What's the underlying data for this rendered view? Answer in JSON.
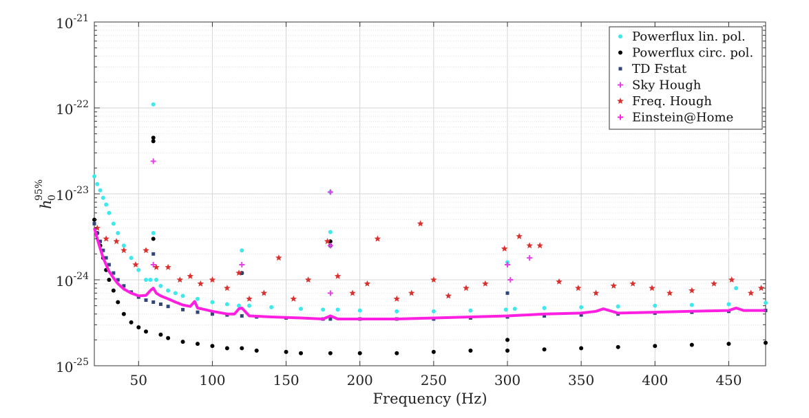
{
  "chart_data": {
    "type": "scatter",
    "xlabel": "Frequency (Hz)",
    "ylabel": "h0 95%",
    "ylabel_base": "h",
    "ylabel_sub": "0",
    "ylabel_sup": "95%",
    "xlim": [
      20,
      475
    ],
    "ylim": [
      1e-25,
      1e-21
    ],
    "yscale": "log",
    "grid": true,
    "legend_position": "top-right",
    "x_ticks": [
      50,
      100,
      150,
      200,
      250,
      300,
      350,
      400,
      450
    ],
    "x_tick_labels": [
      "50",
      "100",
      "150",
      "200",
      "250",
      "300",
      "350",
      "400",
      "450"
    ],
    "y_ticks": [
      1e-25,
      1e-24,
      1e-23,
      1e-22,
      1e-21
    ],
    "y_tick_bases": [
      "10",
      "10",
      "10",
      "10",
      "10"
    ],
    "y_tick_exponents": [
      "-25",
      "-24",
      "-23",
      "-22",
      "-21"
    ],
    "series": [
      {
        "name": "Powerflux lin. pol.",
        "color": "#3ee8ec",
        "marker": "dot",
        "x": [
          20,
          22,
          24,
          26,
          28,
          30,
          33,
          36,
          40,
          45,
          50,
          55,
          58,
          60,
          60,
          62,
          65,
          70,
          75,
          80,
          90,
          100,
          110,
          118,
          120,
          125,
          140,
          160,
          175,
          180,
          180,
          185,
          200,
          225,
          250,
          275,
          299,
          300,
          305,
          325,
          350,
          375,
          400,
          425,
          450,
          455,
          475
        ],
        "y": [
          1.6e-23,
          1.3e-23,
          1.1e-23,
          9e-24,
          7.5e-24,
          6e-24,
          4.5e-24,
          3.5e-24,
          2.5e-24,
          1.8e-24,
          1.3e-24,
          1e-24,
          1e-24,
          1.1e-22,
          3.5e-24,
          1e-24,
          8.5e-25,
          7.5e-25,
          7e-25,
          6.5e-25,
          6e-25,
          5.5e-25,
          5.2e-25,
          5e-25,
          2.2e-24,
          5e-25,
          4.8e-25,
          4.6e-25,
          4.5e-25,
          1.05e-23,
          3.6e-24,
          4.5e-25,
          4.4e-25,
          4.3e-25,
          4.3e-25,
          4.4e-25,
          4.5e-25,
          1.6e-24,
          4.6e-25,
          4.7e-25,
          4.8e-25,
          4.9e-25,
          5e-25,
          5.1e-25,
          5.2e-25,
          8e-25,
          5.4e-25
        ]
      },
      {
        "name": "Powerflux circ. pol.",
        "color": "#000000",
        "marker": "dot",
        "x": [
          20,
          22,
          24,
          26,
          28,
          30,
          33,
          36,
          40,
          45,
          50,
          55,
          60,
          60,
          60,
          65,
          70,
          80,
          90,
          100,
          110,
          120,
          120,
          130,
          150,
          160,
          180,
          180,
          200,
          225,
          250,
          275,
          300,
          300,
          325,
          350,
          375,
          400,
          425,
          450,
          475
        ],
        "y": [
          5e-24,
          3.5e-24,
          2.5e-24,
          1.8e-24,
          1.3e-24,
          1e-24,
          7.5e-25,
          5.5e-25,
          4e-25,
          3.2e-25,
          2.8e-25,
          2.5e-25,
          4.5e-23,
          4.1e-23,
          3e-24,
          2.3e-25,
          2.1e-25,
          1.9e-25,
          1.8e-25,
          1.7e-25,
          1.6e-25,
          1.6e-25,
          1.2e-24,
          1.5e-25,
          1.45e-25,
          1.4e-25,
          1.4e-25,
          2.8e-24,
          1.4e-25,
          1.4e-25,
          1.45e-25,
          1.5e-25,
          1.5e-25,
          2e-25,
          1.55e-25,
          1.6e-25,
          1.65e-25,
          1.7e-25,
          1.75e-25,
          1.8e-25,
          1.85e-25
        ]
      },
      {
        "name": "TD Fstat",
        "color": "#30467a",
        "marker": "square",
        "x": [
          20,
          22,
          24,
          26,
          28,
          30,
          33,
          36,
          40,
          45,
          50,
          55,
          60,
          60,
          65,
          70,
          80,
          90,
          100,
          110,
          120,
          120,
          130,
          150,
          175,
          180,
          180,
          200,
          225,
          250,
          275,
          300,
          300,
          325,
          350,
          375,
          400,
          425,
          450,
          475
        ],
        "y": [
          4.5e-24,
          3.5e-24,
          2.8e-24,
          2.2e-24,
          1.8e-24,
          1.5e-24,
          1.2e-24,
          1e-24,
          8.5e-25,
          7.2e-25,
          6.3e-25,
          5.8e-25,
          2e-24,
          5.5e-25,
          5.2e-25,
          4.9e-25,
          4.5e-25,
          4.2e-25,
          4e-25,
          3.9e-25,
          1.2e-24,
          3.8e-25,
          3.7e-25,
          3.6e-25,
          3.5e-25,
          2.5e-24,
          3.5e-25,
          3.5e-25,
          3.5e-25,
          3.5e-25,
          3.6e-25,
          3.7e-25,
          7e-25,
          3.8e-25,
          3.9e-25,
          4e-25,
          4.1e-25,
          4.2e-25,
          4.3e-25,
          4.4e-25
        ]
      },
      {
        "name": "Sky Hough",
        "color": "#e83ee8",
        "marker": "plus",
        "x": [
          60,
          60,
          120,
          180,
          180,
          180,
          300,
          302,
          315
        ],
        "y": [
          2.4e-23,
          1.5e-24,
          1.5e-24,
          1.05e-23,
          2.5e-24,
          7e-25,
          1.5e-24,
          1e-24,
          1.8e-24
        ]
      },
      {
        "name": "Freq. Hough",
        "color": "#d8312e",
        "marker": "star",
        "x": [
          22,
          28,
          35,
          40,
          48,
          55,
          62,
          70,
          78,
          85,
          92,
          100,
          110,
          118,
          125,
          135,
          145,
          155,
          165,
          178,
          185,
          195,
          205,
          212,
          225,
          235,
          241,
          250,
          260,
          272,
          285,
          298,
          308,
          315,
          322,
          335,
          348,
          360,
          372,
          385,
          398,
          410,
          425,
          440,
          452,
          465,
          472
        ],
        "y": [
          4e-24,
          3e-24,
          2.8e-24,
          2.2e-24,
          1.5e-24,
          2.2e-24,
          1.4e-24,
          1.4e-24,
          1e-24,
          1.1e-24,
          9e-25,
          1e-24,
          8e-25,
          1.2e-24,
          6e-25,
          7e-25,
          1.8e-24,
          6e-25,
          1e-24,
          2.8e-24,
          1.1e-24,
          7e-25,
          9e-25,
          3e-24,
          6e-25,
          7e-25,
          4.5e-24,
          1e-24,
          6.5e-25,
          8e-25,
          9e-25,
          2.3e-24,
          3.2e-24,
          2.5e-24,
          2.5e-24,
          9.5e-25,
          8e-25,
          7e-25,
          8.5e-25,
          9e-25,
          8e-25,
          7e-25,
          7.5e-25,
          9e-25,
          1e-24,
          7e-25,
          8e-25
        ]
      },
      {
        "name": "Einstein@Home",
        "color": "#ff1fe0",
        "marker": "line",
        "x": [
          20,
          22,
          24,
          26,
          28,
          30,
          33,
          36,
          40,
          45,
          50,
          55,
          58,
          60,
          62,
          65,
          70,
          75,
          80,
          85,
          88,
          90,
          95,
          100,
          110,
          115,
          118,
          120,
          125,
          140,
          160,
          175,
          180,
          185,
          200,
          225,
          250,
          275,
          300,
          325,
          350,
          360,
          365,
          375,
          400,
          425,
          450,
          455,
          460,
          475
        ],
        "y": [
          4e-24,
          3e-24,
          2.3e-24,
          1.8e-24,
          1.5e-24,
          1.25e-24,
          1.05e-24,
          9e-25,
          7.8e-25,
          7e-25,
          6.5e-25,
          6.6e-25,
          7.5e-25,
          8e-25,
          7e-25,
          6.5e-25,
          6e-25,
          5.5e-25,
          5.1e-25,
          4.9e-25,
          5.6e-25,
          4.7e-25,
          4.5e-25,
          4.3e-25,
          4e-25,
          4e-25,
          4.6e-25,
          4.7e-25,
          3.8e-25,
          3.7e-25,
          3.6e-25,
          3.5e-25,
          3.8e-25,
          3.5e-25,
          3.5e-25,
          3.5e-25,
          3.6e-25,
          3.7e-25,
          3.8e-25,
          4e-25,
          4.1e-25,
          4.3e-25,
          4.6e-25,
          4.1e-25,
          4.2e-25,
          4.3e-25,
          4.4e-25,
          4.7e-25,
          4.4e-25,
          4.4e-25
        ]
      }
    ]
  }
}
